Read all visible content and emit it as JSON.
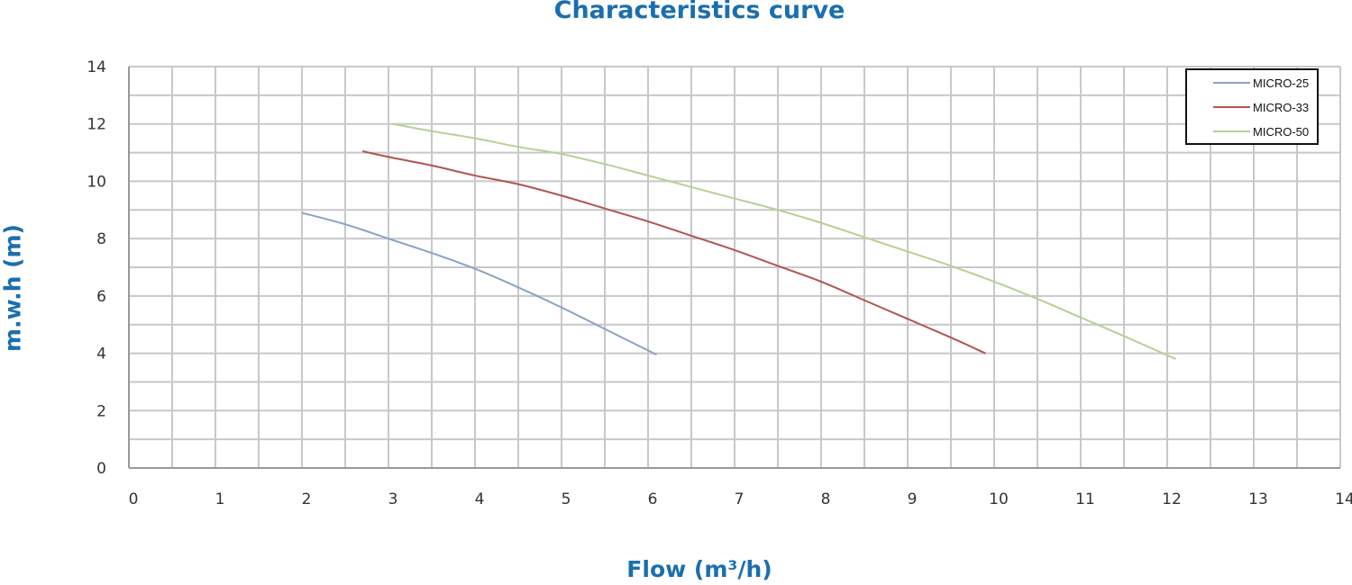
{
  "chart_data": {
    "type": "line",
    "title": "Characteristics curve",
    "xlabel": "Flow (m³/h)",
    "ylabel": "m.w.h (m)",
    "xlim": [
      0,
      14
    ],
    "ylim": [
      0,
      14
    ],
    "xticks": [
      0,
      1,
      2,
      3,
      4,
      5,
      6,
      7,
      8,
      9,
      10,
      11,
      12,
      13,
      14
    ],
    "yticks": [
      0,
      2,
      4,
      6,
      8,
      10,
      12,
      14
    ],
    "grid": true,
    "legend_position": "top-right",
    "series": [
      {
        "name": "MICRO-25",
        "color": "#8aa3c2",
        "x": [
          2,
          2.5,
          3,
          3.5,
          4,
          4.5,
          5,
          5.5,
          6.1
        ],
        "y": [
          8.9,
          8.5,
          8.0,
          7.5,
          6.95,
          6.3,
          5.6,
          4.85,
          3.95
        ]
      },
      {
        "name": "MICRO-33",
        "color": "#b05550",
        "x": [
          2.7,
          3,
          3.5,
          4,
          4.5,
          5,
          5.5,
          6,
          6.5,
          7,
          7.5,
          8,
          8.5,
          9,
          9.5,
          9.9
        ],
        "y": [
          11.05,
          10.85,
          10.55,
          10.2,
          9.9,
          9.5,
          9.05,
          8.6,
          8.1,
          7.6,
          7.05,
          6.5,
          5.85,
          5.2,
          4.55,
          4.0
        ]
      },
      {
        "name": "MICRO-50",
        "color": "#b7cf98",
        "x": [
          3.05,
          3.5,
          4,
          4.5,
          5,
          5.5,
          6,
          6.5,
          7,
          7.5,
          8,
          8.5,
          9,
          9.5,
          10,
          10.5,
          11,
          11.5,
          12.1
        ],
        "y": [
          12.0,
          11.75,
          11.5,
          11.2,
          10.95,
          10.6,
          10.2,
          9.8,
          9.4,
          9.0,
          8.55,
          8.05,
          7.55,
          7.05,
          6.5,
          5.9,
          5.25,
          4.6,
          3.8
        ]
      }
    ]
  }
}
